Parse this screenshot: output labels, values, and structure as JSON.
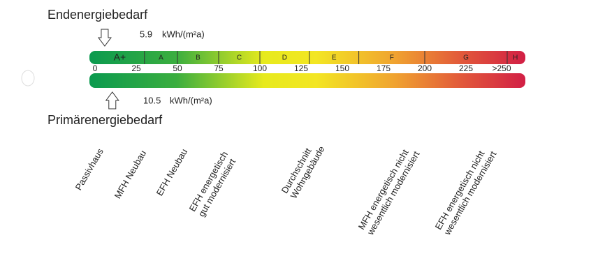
{
  "header": {
    "final_energy_title": "Endenergiebedarf",
    "primary_energy_title": "Primärenergiebedarf"
  },
  "final_energy": {
    "value": 5.9,
    "unit": "kWh/(m²a)"
  },
  "primary_energy": {
    "value": 10.5,
    "unit": "kWh/(m²a)"
  },
  "scale": {
    "ticks": [
      0,
      25,
      50,
      75,
      100,
      125,
      150,
      175,
      200,
      225,
      {
        "value": 250,
        "label": ">250"
      }
    ],
    "classes": [
      {
        "label": "A+",
        "from": 0,
        "to": 30
      },
      {
        "label": "A",
        "from": 30,
        "to": 50
      },
      {
        "label": "B",
        "from": 50,
        "to": 75
      },
      {
        "label": "C",
        "from": 75,
        "to": 100
      },
      {
        "label": "D",
        "from": 100,
        "to": 130
      },
      {
        "label": "E",
        "from": 130,
        "to": 160
      },
      {
        "label": "F",
        "from": 160,
        "to": 200
      },
      {
        "label": "G",
        "from": 200,
        "to": 250
      },
      {
        "label": "H",
        "from": 250,
        "to": 260
      }
    ]
  },
  "references": [
    [
      "Passivhaus"
    ],
    [
      "MFH Neubau"
    ],
    [
      "EFH Neubau"
    ],
    [
      "EFH energetisch",
      "gut modernisiert"
    ],
    [
      "Durchschnitt",
      "Wohngebäude"
    ],
    [
      "MFH energetisch nicht",
      "wesentlich modernisiert"
    ],
    [
      "EFH energetisch nicht",
      "wesentlich modernisiert"
    ]
  ]
}
